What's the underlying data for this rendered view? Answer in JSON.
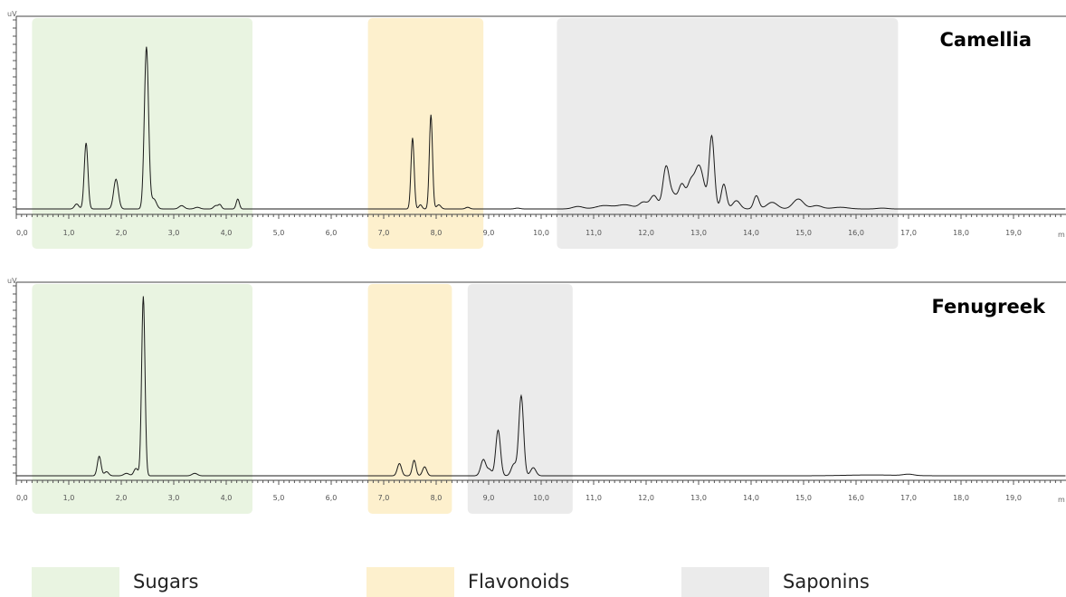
{
  "chart_data": [
    {
      "type": "line",
      "title": "Camellia",
      "y_unit_label": "uV",
      "x_unit_label": "m",
      "xlim": [
        0,
        20
      ],
      "x_ticks": [
        "0,0",
        "1,0",
        "2,0",
        "3,0",
        "4,0",
        "5,0",
        "6,0",
        "7,0",
        "8,0",
        "9,0",
        "10,0",
        "11,0",
        "12,0",
        "13,0",
        "14,0",
        "15,0",
        "16,0",
        "17,0",
        "18,0",
        "19,0"
      ],
      "regions": [
        {
          "class": "Sugars",
          "x": [
            0.3,
            4.5
          ]
        },
        {
          "class": "Flavonoids",
          "x": [
            6.7,
            8.9
          ]
        },
        {
          "class": "Saponins",
          "x": [
            10.3,
            16.8
          ]
        }
      ],
      "baseline": 1.0,
      "ylim": [
        0,
        12
      ],
      "series": [
        {
          "peaks": [
            {
              "t": 1.15,
              "h": 0.3,
              "w": 0.04
            },
            {
              "t": 1.33,
              "h": 4.0,
              "w": 0.035
            },
            {
              "t": 1.9,
              "h": 1.8,
              "w": 0.045
            },
            {
              "t": 2.48,
              "h": 9.8,
              "w": 0.04
            },
            {
              "t": 2.62,
              "h": 0.6,
              "w": 0.05
            },
            {
              "t": 3.15,
              "h": 0.2,
              "w": 0.05
            },
            {
              "t": 3.45,
              "h": 0.1,
              "w": 0.05
            },
            {
              "t": 3.8,
              "h": 0.2,
              "w": 0.04
            },
            {
              "t": 3.88,
              "h": 0.25,
              "w": 0.03
            },
            {
              "t": 4.22,
              "h": 0.6,
              "w": 0.03
            },
            {
              "t": 7.55,
              "h": 4.3,
              "w": 0.03
            },
            {
              "t": 7.7,
              "h": 0.25,
              "w": 0.03
            },
            {
              "t": 7.9,
              "h": 5.7,
              "w": 0.03
            },
            {
              "t": 8.05,
              "h": 0.25,
              "w": 0.04
            },
            {
              "t": 8.6,
              "h": 0.1,
              "w": 0.04
            },
            {
              "t": 9.55,
              "h": 0.05,
              "w": 0.05
            },
            {
              "t": 10.7,
              "h": 0.15,
              "w": 0.1
            },
            {
              "t": 11.2,
              "h": 0.2,
              "w": 0.15
            },
            {
              "t": 11.6,
              "h": 0.25,
              "w": 0.15
            },
            {
              "t": 11.95,
              "h": 0.4,
              "w": 0.08
            },
            {
              "t": 12.15,
              "h": 0.8,
              "w": 0.07
            },
            {
              "t": 12.38,
              "h": 2.5,
              "w": 0.06
            },
            {
              "t": 12.52,
              "h": 0.8,
              "w": 0.07
            },
            {
              "t": 12.68,
              "h": 1.4,
              "w": 0.06
            },
            {
              "t": 12.85,
              "h": 1.6,
              "w": 0.07
            },
            {
              "t": 13.0,
              "h": 2.3,
              "w": 0.07
            },
            {
              "t": 13.1,
              "h": 0.8,
              "w": 0.06
            },
            {
              "t": 13.25,
              "h": 4.4,
              "w": 0.05
            },
            {
              "t": 13.48,
              "h": 1.5,
              "w": 0.05
            },
            {
              "t": 13.72,
              "h": 0.5,
              "w": 0.07
            },
            {
              "t": 14.1,
              "h": 0.8,
              "w": 0.05
            },
            {
              "t": 14.4,
              "h": 0.4,
              "w": 0.1
            },
            {
              "t": 14.9,
              "h": 0.6,
              "w": 0.1
            },
            {
              "t": 15.25,
              "h": 0.2,
              "w": 0.1
            },
            {
              "t": 15.7,
              "h": 0.1,
              "w": 0.15
            },
            {
              "t": 16.5,
              "h": 0.05,
              "w": 0.1
            }
          ]
        }
      ]
    },
    {
      "type": "line",
      "title": "Fenugreek",
      "y_unit_label": "uV",
      "x_unit_label": "m",
      "xlim": [
        0,
        20
      ],
      "x_ticks": [
        "0,0",
        "1,0",
        "2,0",
        "3,0",
        "4,0",
        "5,0",
        "6,0",
        "7,0",
        "8,0",
        "9,0",
        "10,0",
        "11,0",
        "12,0",
        "13,0",
        "14,0",
        "15,0",
        "16,0",
        "17,0",
        "18,0",
        "19,0"
      ],
      "regions": [
        {
          "class": "Sugars",
          "x": [
            0.3,
            4.5
          ]
        },
        {
          "class": "Flavonoids",
          "x": [
            6.7,
            8.3
          ]
        },
        {
          "class": "Saponins",
          "x": [
            8.6,
            10.6
          ]
        }
      ],
      "baseline": 1.0,
      "ylim": [
        0,
        12.2
      ],
      "series": [
        {
          "peaks": [
            {
              "t": 1.58,
              "h": 1.2,
              "w": 0.035
            },
            {
              "t": 1.72,
              "h": 0.25,
              "w": 0.04
            },
            {
              "t": 2.1,
              "h": 0.15,
              "w": 0.05
            },
            {
              "t": 2.28,
              "h": 0.45,
              "w": 0.04
            },
            {
              "t": 2.42,
              "h": 11.0,
              "w": 0.032
            },
            {
              "t": 3.4,
              "h": 0.15,
              "w": 0.05
            },
            {
              "t": 7.3,
              "h": 0.75,
              "w": 0.04
            },
            {
              "t": 7.58,
              "h": 0.95,
              "w": 0.035
            },
            {
              "t": 7.78,
              "h": 0.55,
              "w": 0.04
            },
            {
              "t": 8.9,
              "h": 1.0,
              "w": 0.05
            },
            {
              "t": 9.02,
              "h": 0.35,
              "w": 0.04
            },
            {
              "t": 9.18,
              "h": 2.8,
              "w": 0.045
            },
            {
              "t": 9.48,
              "h": 0.7,
              "w": 0.05
            },
            {
              "t": 9.62,
              "h": 4.9,
              "w": 0.045
            },
            {
              "t": 9.85,
              "h": 0.5,
              "w": 0.05
            },
            {
              "t": 16.3,
              "h": 0.05,
              "w": 0.5
            },
            {
              "t": 17.0,
              "h": 0.08,
              "w": 0.1
            }
          ]
        }
      ]
    }
  ],
  "legend": [
    {
      "label": "Sugars",
      "color": "#e9f4e1"
    },
    {
      "label": "Flavonoids",
      "color": "#fdf0cd"
    },
    {
      "label": "Saponins",
      "color": "#ebebeb"
    }
  ],
  "region_colors": {
    "Sugars": "#e9f4e1",
    "Flavonoids": "#fdf0cd",
    "Saponins": "#ebebeb"
  }
}
